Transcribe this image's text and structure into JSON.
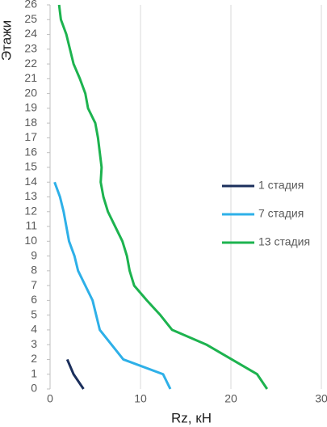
{
  "chart_data": {
    "type": "line",
    "orientation": "horizontal",
    "x_label": "Rz, кН",
    "y_label": "Этажи",
    "xlim": [
      0,
      30
    ],
    "xticks": [
      0,
      10,
      20,
      30
    ],
    "ylim": [
      0,
      26
    ],
    "yticks": [
      0,
      1,
      2,
      3,
      4,
      5,
      6,
      7,
      8,
      9,
      10,
      11,
      12,
      13,
      14,
      15,
      16,
      17,
      18,
      19,
      20,
      21,
      22,
      23,
      24,
      25,
      26
    ],
    "grid": true,
    "legend": "right",
    "series": [
      {
        "name": "1 стадия",
        "color": "#1b2f5c",
        "y": [
          0,
          1,
          2
        ],
        "values": [
          3.7,
          2.6,
          1.9
        ]
      },
      {
        "name": "7 стадия",
        "color": "#2eb0e8",
        "y": [
          0,
          1,
          2,
          3,
          4,
          5,
          6,
          7,
          8,
          9,
          10,
          11,
          12,
          13,
          14
        ],
        "values": [
          13.3,
          12.5,
          8.1,
          6.8,
          5.5,
          5.1,
          4.7,
          3.9,
          3.1,
          2.7,
          2.1,
          1.8,
          1.5,
          1.1,
          0.5
        ]
      },
      {
        "name": "13 стадия",
        "color": "#1db34f",
        "y": [
          0,
          1,
          2,
          3,
          4,
          5,
          6,
          7,
          8,
          9,
          10,
          11,
          12,
          13,
          14,
          15,
          16,
          17,
          18,
          19,
          20,
          21,
          22,
          23,
          24,
          25,
          26
        ],
        "values": [
          24.0,
          22.9,
          20.1,
          17.3,
          13.5,
          12.2,
          10.7,
          9.3,
          8.8,
          8.5,
          8.0,
          7.2,
          6.4,
          5.9,
          5.6,
          5.7,
          5.5,
          5.3,
          5.0,
          4.2,
          3.9,
          3.3,
          2.6,
          2.2,
          1.8,
          1.2,
          1.0
        ]
      }
    ]
  }
}
